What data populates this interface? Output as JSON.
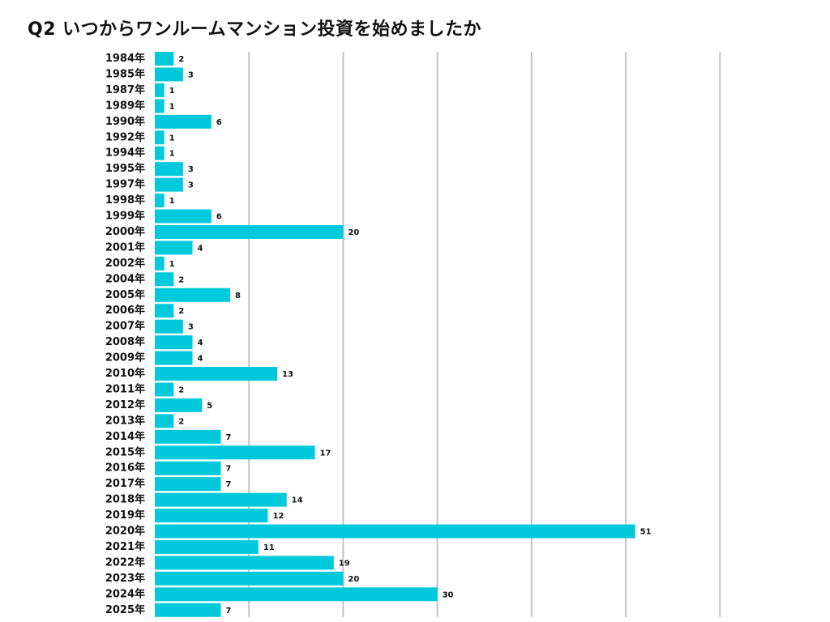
{
  "chart_data": {
    "type": "bar",
    "orientation": "horizontal",
    "title": "Q2 いつからワンルームマンション投資を始めましたか",
    "xlabel": "",
    "ylabel": "",
    "xlim": [
      0,
      60
    ],
    "grid": true,
    "bar_color": "#00c9dc",
    "categories": [
      "1984年",
      "1985年",
      "1987年",
      "1989年",
      "1990年",
      "1992年",
      "1994年",
      "1995年",
      "1997年",
      "1998年",
      "1999年",
      "2000年",
      "2001年",
      "2002年",
      "2004年",
      "2005年",
      "2006年",
      "2007年",
      "2008年",
      "2009年",
      "2010年",
      "2011年",
      "2012年",
      "2013年",
      "2014年",
      "2015年",
      "2016年",
      "2017年",
      "2018年",
      "2019年",
      "2020年",
      "2021年",
      "2022年",
      "2023年",
      "2024年",
      "2025年"
    ],
    "values": [
      2,
      3,
      1,
      1,
      6,
      1,
      1,
      3,
      3,
      1,
      6,
      20,
      4,
      1,
      2,
      8,
      2,
      3,
      4,
      4,
      13,
      2,
      5,
      2,
      7,
      17,
      7,
      7,
      14,
      12,
      51,
      11,
      19,
      20,
      30,
      7
    ]
  }
}
